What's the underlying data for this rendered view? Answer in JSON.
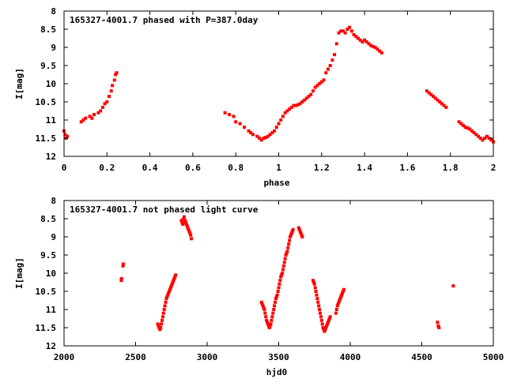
{
  "colors": {
    "points": "#ff0000",
    "axis": "#000000",
    "background": "#ffffff"
  },
  "chart_data": [
    {
      "type": "scatter",
      "title": "165327-4001.7 phased with P=387.0day",
      "xlabel": "phase",
      "ylabel": "I[mag]",
      "xlim": [
        0,
        2
      ],
      "ylim": [
        8,
        12
      ],
      "y_inverted": true,
      "xticks": [
        "0",
        "0.2",
        "0.4",
        "0.6",
        "0.8",
        "1",
        "1.2",
        "1.4",
        "1.6",
        "1.8",
        "2"
      ],
      "yticks": [
        "8",
        "8.5",
        "9",
        "9.5",
        "10",
        "10.5",
        "11",
        "11.5",
        "12"
      ],
      "grid": false,
      "legend": "none",
      "series": [
        {
          "x": [
            0.0,
            0.005,
            0.01,
            0.015,
            0.08,
            0.09,
            0.1,
            0.12,
            0.13,
            0.14,
            0.16,
            0.17,
            0.18,
            0.19,
            0.2,
            0.21,
            0.22,
            0.225,
            0.235,
            0.24,
            0.245,
            0.75,
            0.77,
            0.79,
            0.8,
            0.82,
            0.84,
            0.86,
            0.87,
            0.88,
            0.9,
            0.91,
            0.92,
            0.93,
            0.94,
            0.95,
            0.96,
            0.97,
            0.98,
            0.99,
            1.0,
            1.01,
            1.02,
            1.03,
            1.04,
            1.05,
            1.06,
            1.07,
            1.08,
            1.09,
            1.1,
            1.11,
            1.12,
            1.13,
            1.14,
            1.15,
            1.16,
            1.17,
            1.18,
            1.19,
            1.2,
            1.21,
            1.22,
            1.23,
            1.24,
            1.25,
            1.26,
            1.27,
            1.28,
            1.29,
            1.3,
            1.31,
            1.32,
            1.33,
            1.34,
            1.35,
            1.36,
            1.37,
            1.38,
            1.39,
            1.4,
            1.41,
            1.42,
            1.43,
            1.44,
            1.45,
            1.46,
            1.47,
            1.48,
            1.69,
            1.7,
            1.71,
            1.72,
            1.73,
            1.74,
            1.75,
            1.76,
            1.77,
            1.78,
            1.84,
            1.85,
            1.86,
            1.87,
            1.88,
            1.89,
            1.9,
            1.91,
            1.92,
            1.93,
            1.94,
            1.95,
            1.96,
            1.97,
            1.98,
            1.99,
            2.0
          ],
          "y": [
            11.3,
            11.4,
            11.5,
            11.45,
            11.05,
            11.0,
            10.95,
            10.9,
            10.95,
            10.85,
            10.8,
            10.75,
            10.65,
            10.55,
            10.5,
            10.35,
            10.2,
            10.05,
            9.9,
            9.75,
            9.7,
            10.8,
            10.85,
            10.9,
            11.05,
            11.1,
            11.2,
            11.3,
            11.35,
            11.4,
            11.45,
            11.5,
            11.55,
            11.5,
            11.48,
            11.45,
            11.4,
            11.35,
            11.3,
            11.2,
            11.1,
            11.0,
            10.9,
            10.8,
            10.75,
            10.7,
            10.65,
            10.6,
            10.6,
            10.58,
            10.55,
            10.5,
            10.45,
            10.4,
            10.35,
            10.3,
            10.2,
            10.1,
            10.05,
            10.0,
            9.95,
            9.9,
            9.7,
            9.6,
            9.5,
            9.35,
            9.2,
            8.9,
            8.6,
            8.55,
            8.55,
            8.6,
            8.5,
            8.45,
            8.55,
            8.65,
            8.7,
            8.75,
            8.8,
            8.85,
            8.8,
            8.85,
            8.9,
            8.95,
            8.98,
            9.0,
            9.05,
            9.1,
            9.15,
            10.2,
            10.25,
            10.3,
            10.35,
            10.4,
            10.45,
            10.5,
            10.55,
            10.6,
            10.65,
            11.05,
            11.1,
            11.15,
            11.2,
            11.22,
            11.25,
            11.3,
            11.35,
            11.4,
            11.45,
            11.5,
            11.55,
            11.5,
            11.45,
            11.5,
            11.55,
            11.6
          ]
        }
      ]
    },
    {
      "type": "scatter",
      "title": "165327-4001.7 not phased light curve",
      "xlabel": "hjd0",
      "ylabel": "I[mag]",
      "xlim": [
        2000,
        5000
      ],
      "ylim": [
        8,
        12
      ],
      "y_inverted": true,
      "xticks": [
        "2000",
        "2500",
        "3000",
        "3500",
        "4000",
        "4500",
        "5000"
      ],
      "yticks": [
        "8",
        "8.5",
        "9",
        "9.5",
        "10",
        "10.5",
        "11",
        "11.5",
        "12"
      ],
      "grid": false,
      "legend": "none",
      "series": [
        {
          "x": [
            2400,
            2402,
            2412,
            2414,
            2655,
            2660,
            2665,
            2670,
            2675,
            2680,
            2685,
            2690,
            2695,
            2700,
            2705,
            2710,
            2715,
            2720,
            2725,
            2730,
            2735,
            2740,
            2745,
            2750,
            2755,
            2760,
            2765,
            2770,
            2775,
            2780,
            2820,
            2825,
            2830,
            2835,
            2840,
            2845,
            2850,
            2855,
            2860,
            2865,
            2870,
            2875,
            2880,
            2885,
            2890,
            3380,
            3385,
            3390,
            3395,
            3400,
            3405,
            3410,
            3415,
            3420,
            3425,
            3430,
            3435,
            3440,
            3445,
            3450,
            3455,
            3460,
            3465,
            3470,
            3475,
            3480,
            3485,
            3490,
            3495,
            3500,
            3505,
            3510,
            3515,
            3520,
            3525,
            3530,
            3535,
            3540,
            3545,
            3550,
            3555,
            3560,
            3565,
            3570,
            3575,
            3580,
            3585,
            3590,
            3595,
            3600,
            3640,
            3645,
            3650,
            3655,
            3660,
            3665,
            3740,
            3745,
            3750,
            3755,
            3760,
            3765,
            3770,
            3775,
            3780,
            3785,
            3790,
            3795,
            3800,
            3805,
            3810,
            3815,
            3820,
            3825,
            3830,
            3835,
            3840,
            3845,
            3850,
            3855,
            3860,
            3900,
            3905,
            3910,
            3915,
            3920,
            3925,
            3930,
            3935,
            3940,
            3945,
            3950,
            3955,
            4610,
            4615,
            4620,
            4720
          ],
          "y": [
            10.2,
            10.15,
            9.8,
            9.75,
            11.4,
            11.45,
            11.5,
            11.55,
            11.5,
            11.4,
            11.3,
            11.2,
            11.1,
            11.0,
            10.9,
            10.8,
            10.7,
            10.65,
            10.6,
            10.55,
            10.5,
            10.45,
            10.4,
            10.35,
            10.3,
            10.25,
            10.2,
            10.15,
            10.1,
            10.05,
            8.55,
            8.6,
            8.65,
            8.5,
            8.45,
            8.55,
            8.6,
            8.65,
            8.7,
            8.75,
            8.8,
            8.85,
            8.9,
            8.95,
            9.05,
            10.8,
            10.85,
            10.9,
            10.95,
            11.0,
            11.1,
            11.2,
            11.3,
            11.35,
            11.4,
            11.45,
            11.5,
            11.45,
            11.4,
            11.3,
            11.2,
            11.1,
            11.0,
            10.9,
            10.8,
            10.7,
            10.65,
            10.6,
            10.5,
            10.4,
            10.3,
            10.2,
            10.1,
            10.05,
            10.0,
            9.9,
            9.8,
            9.7,
            9.6,
            9.5,
            9.45,
            9.4,
            9.3,
            9.2,
            9.1,
            9.0,
            8.95,
            8.9,
            8.85,
            8.8,
            8.75,
            8.8,
            8.85,
            8.9,
            8.95,
            9.0,
            10.2,
            10.25,
            10.3,
            10.4,
            10.5,
            10.6,
            10.7,
            10.8,
            10.9,
            11.0,
            11.1,
            11.2,
            11.3,
            11.4,
            11.5,
            11.55,
            11.6,
            11.55,
            11.5,
            11.45,
            11.4,
            11.35,
            11.3,
            11.25,
            11.2,
            11.1,
            11.0,
            10.9,
            10.85,
            10.8,
            10.75,
            10.7,
            10.65,
            10.6,
            10.55,
            10.5,
            10.45,
            11.35,
            11.45,
            11.5,
            10.35
          ]
        }
      ]
    }
  ]
}
